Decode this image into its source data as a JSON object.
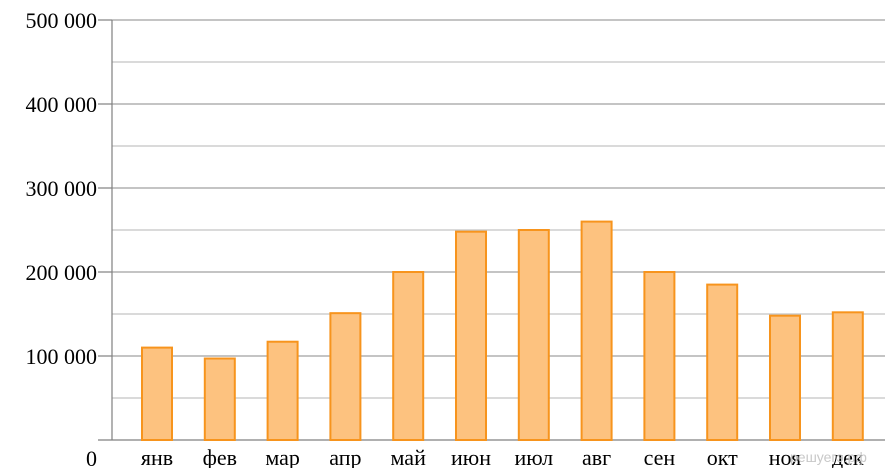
{
  "chart_data": {
    "type": "bar",
    "categories": [
      "янв",
      "фев",
      "мар",
      "апр",
      "май",
      "июн",
      "июл",
      "авг",
      "сен",
      "окт",
      "ноя",
      "дек"
    ],
    "values": [
      110000,
      97000,
      117000,
      151000,
      200000,
      248000,
      250000,
      260000,
      200000,
      185000,
      148000,
      152000
    ],
    "ylim": [
      0,
      500000
    ],
    "yticks": [
      0,
      100000,
      200000,
      300000,
      400000,
      500000
    ],
    "ytick_labels": [
      "0",
      "100 000",
      "200 000",
      "300 000",
      "400 000",
      "500 000"
    ],
    "grid": true,
    "minor_grid": true,
    "bar_fill": "#fdc27f",
    "bar_stroke": "#f7941d",
    "grid_color": "#a0a0a0"
  },
  "watermark": "решуегэ.рф"
}
